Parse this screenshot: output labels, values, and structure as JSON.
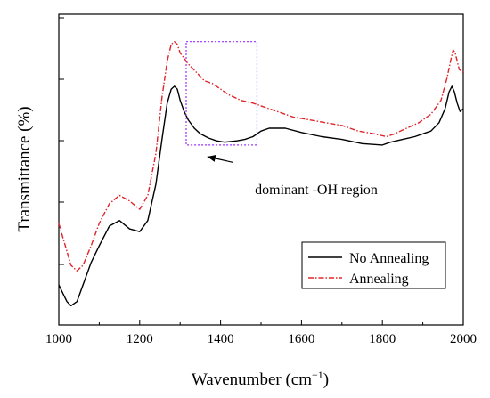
{
  "chart_data": {
    "type": "line",
    "xlabel": "Wavenumber (cm",
    "xlabel_sup": "−1",
    "xlabel_close": ")",
    "ylabel": "Transmittance (%)",
    "xlim": [
      1000,
      2000
    ],
    "ylim": [
      0,
      100
    ],
    "x_ticks": [
      1000,
      1200,
      1400,
      1600,
      1800,
      2000
    ],
    "y_tick_labels_shown": false,
    "grid": false,
    "legend_position": "bottom-right",
    "annotation": {
      "text": "dominant -OH region",
      "box_x_range": [
        1315,
        1490
      ],
      "box_y_range": [
        58,
        95
      ],
      "arrow_from": [
        1430,
        48
      ],
      "arrow_to": [
        1385,
        57
      ],
      "box_color": "#9b30ff"
    },
    "series": [
      {
        "name": "No Annealing",
        "color": "#000000",
        "dash": "solid",
        "points": [
          [
            1000,
            8
          ],
          [
            1010,
            5
          ],
          [
            1020,
            2
          ],
          [
            1030,
            0.5
          ],
          [
            1045,
            2
          ],
          [
            1060,
            8
          ],
          [
            1080,
            16
          ],
          [
            1100,
            22
          ],
          [
            1125,
            29
          ],
          [
            1150,
            31
          ],
          [
            1175,
            28
          ],
          [
            1200,
            27
          ],
          [
            1220,
            31
          ],
          [
            1240,
            44
          ],
          [
            1255,
            60
          ],
          [
            1268,
            73
          ],
          [
            1278,
            78
          ],
          [
            1286,
            79
          ],
          [
            1293,
            78
          ],
          [
            1300,
            74
          ],
          [
            1310,
            70
          ],
          [
            1320,
            67
          ],
          [
            1335,
            64
          ],
          [
            1350,
            62
          ],
          [
            1370,
            60.5
          ],
          [
            1390,
            59.5
          ],
          [
            1410,
            59
          ],
          [
            1440,
            59.5
          ],
          [
            1460,
            60
          ],
          [
            1480,
            61
          ],
          [
            1500,
            63
          ],
          [
            1520,
            64
          ],
          [
            1560,
            64
          ],
          [
            1600,
            62.5
          ],
          [
            1650,
            61
          ],
          [
            1700,
            60
          ],
          [
            1750,
            58.5
          ],
          [
            1800,
            58
          ],
          [
            1820,
            59
          ],
          [
            1850,
            60
          ],
          [
            1880,
            61
          ],
          [
            1900,
            62
          ],
          [
            1920,
            63
          ],
          [
            1940,
            66
          ],
          [
            1955,
            71
          ],
          [
            1965,
            77
          ],
          [
            1972,
            79
          ],
          [
            1978,
            77
          ],
          [
            1985,
            73
          ],
          [
            1992,
            70
          ],
          [
            2000,
            71
          ]
        ]
      },
      {
        "name": "Annealing",
        "color": "#e0252a",
        "dash": "dashdot",
        "points": [
          [
            1000,
            30
          ],
          [
            1010,
            25
          ],
          [
            1020,
            20
          ],
          [
            1030,
            15
          ],
          [
            1045,
            13
          ],
          [
            1060,
            15
          ],
          [
            1080,
            22
          ],
          [
            1100,
            30
          ],
          [
            1125,
            37
          ],
          [
            1150,
            40
          ],
          [
            1175,
            38
          ],
          [
            1200,
            35
          ],
          [
            1220,
            40
          ],
          [
            1240,
            55
          ],
          [
            1255,
            75
          ],
          [
            1268,
            88
          ],
          [
            1278,
            94
          ],
          [
            1286,
            95
          ],
          [
            1293,
            94
          ],
          [
            1300,
            91
          ],
          [
            1320,
            87
          ],
          [
            1340,
            84
          ],
          [
            1360,
            81
          ],
          [
            1380,
            80
          ],
          [
            1400,
            78
          ],
          [
            1420,
            76
          ],
          [
            1450,
            74
          ],
          [
            1480,
            73
          ],
          [
            1500,
            72
          ],
          [
            1540,
            70
          ],
          [
            1580,
            68
          ],
          [
            1620,
            67
          ],
          [
            1660,
            66
          ],
          [
            1700,
            65
          ],
          [
            1740,
            63
          ],
          [
            1780,
            62
          ],
          [
            1810,
            61
          ],
          [
            1830,
            62
          ],
          [
            1860,
            64
          ],
          [
            1890,
            66
          ],
          [
            1920,
            69
          ],
          [
            1945,
            74
          ],
          [
            1960,
            82
          ],
          [
            1970,
            89
          ],
          [
            1975,
            92
          ],
          [
            1980,
            91
          ],
          [
            1990,
            85
          ],
          [
            2000,
            84
          ]
        ]
      }
    ]
  }
}
